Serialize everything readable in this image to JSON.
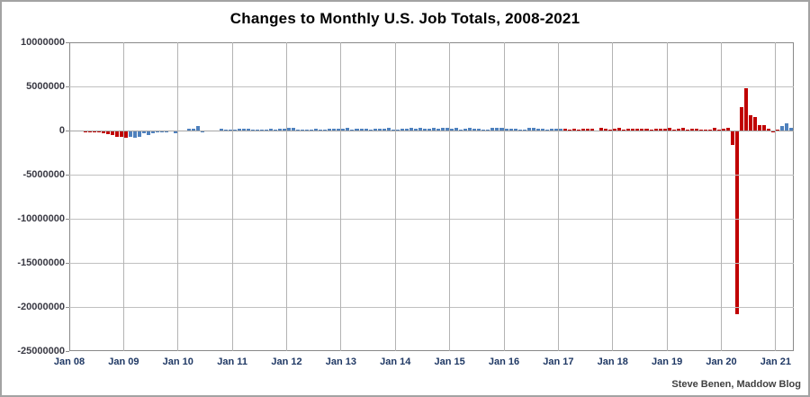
{
  "window": {
    "background": "#ffffff",
    "border_color": "#a3a3a3"
  },
  "style": {
    "bar_red": "#c00000",
    "bar_blue": "#4f81bd",
    "grid_color": "#c0c0c0",
    "axis_border_color": "#898989",
    "x_label_color": "#1f3864",
    "y_label_color": "#383842",
    "title_color": "#000000"
  },
  "attribution": "Steve Benen, Maddow Blog",
  "chart_data": {
    "type": "bar",
    "title": "Changes to Monthly U.S. Job Totals, 2008-2021",
    "xlabel": "",
    "ylabel": "",
    "ylim": [
      -25000000,
      10000000
    ],
    "y_tick_step": 5000000,
    "y_tick_labels": [
      "10000000",
      "5000000",
      "0",
      "-5000000",
      "-10000000",
      "-15000000",
      "-20000000",
      "-25000000"
    ],
    "x_tick_labels": [
      "Jan 08",
      "Jan 09",
      "Jan 10",
      "Jan 11",
      "Jan 12",
      "Jan 13",
      "Jan 14",
      "Jan 15",
      "Jan 16",
      "Jan 17",
      "Jan 18",
      "Jan 19",
      "Jan 20",
      "Jan 21"
    ],
    "grid": true,
    "legend": false,
    "start_month": "2008-01",
    "end_month": "2021-04",
    "values_unit": "thousands of jobs (monthly change)",
    "values_thousands": [
      -17,
      -83,
      -72,
      -214,
      -182,
      -172,
      -210,
      -259,
      -452,
      -474,
      -765,
      -697,
      -798,
      -701,
      -826,
      -684,
      -354,
      -467,
      -327,
      -216,
      -227,
      -198,
      -6,
      -283,
      -40,
      -35,
      189,
      239,
      516,
      -167,
      -58,
      -51,
      -27,
      220,
      121,
      120,
      110,
      220,
      246,
      251,
      54,
      84,
      96,
      85,
      202,
      112,
      157,
      223,
      275,
      259,
      143,
      68,
      87,
      45,
      181,
      142,
      114,
      225,
      203,
      214,
      197,
      280,
      141,
      203,
      199,
      201,
      149,
      202,
      164,
      237,
      274,
      84,
      144,
      222,
      203,
      304,
      229,
      267,
      243,
      203,
      271,
      243,
      321,
      329,
      201,
      266,
      119,
      187,
      260,
      231,
      223,
      150,
      149,
      307,
      280,
      271,
      168,
      233,
      186,
      144,
      43,
      297,
      291,
      176,
      249,
      124,
      164,
      155,
      216,
      232,
      50,
      174,
      152,
      210,
      189,
      156,
      -33,
      261,
      216,
      146,
      200,
      313,
      103,
      164,
      223,
      213,
      157,
      201,
      134,
      250,
      155,
      222,
      304,
      20,
      196,
      263,
      75,
      224,
      164,
      130,
      136,
      128,
      266,
      145,
      225,
      273,
      -1683,
      -20800,
      2700,
      4800,
      1763,
      1489,
      661,
      638,
      245,
      -227,
      49,
      468,
      770,
      266
    ],
    "color_segments": [
      {
        "start_index": 0,
        "end_index": 12,
        "color": "#c00000"
      },
      {
        "start_index": 13,
        "end_index": 108,
        "color": "#4f81bd"
      },
      {
        "start_index": 109,
        "end_index": 156,
        "color": "#c00000"
      },
      {
        "start_index": 157,
        "end_index": 159,
        "color": "#4f81bd"
      }
    ]
  }
}
